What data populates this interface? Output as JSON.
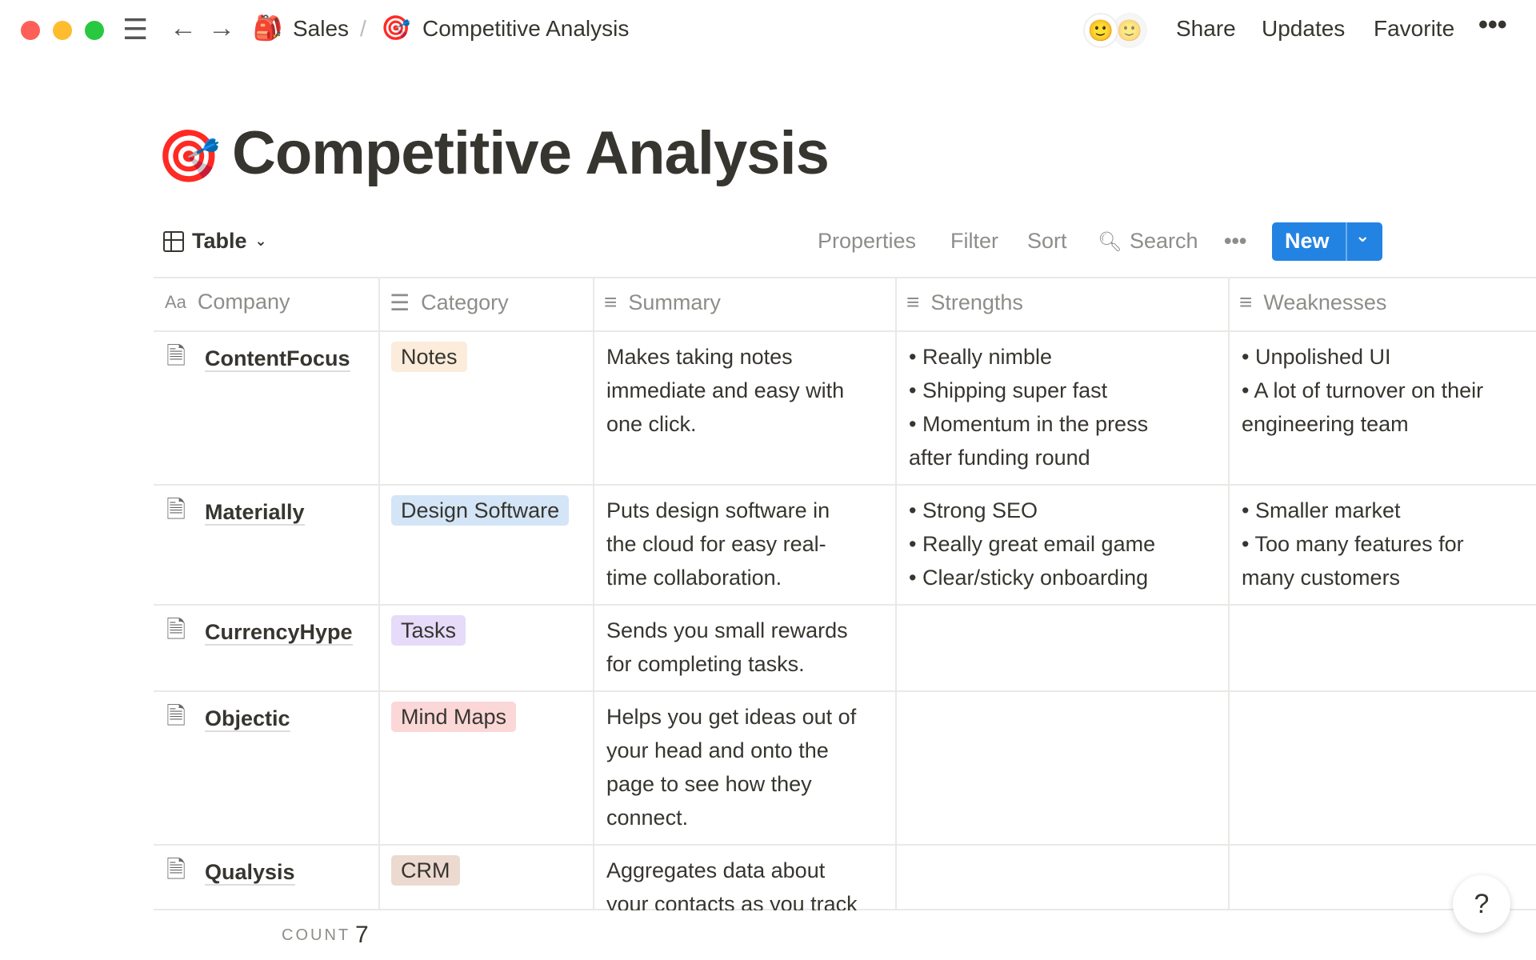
{
  "topbar": {
    "breadcrumb": [
      {
        "label": "Sales",
        "icon": "backpack-icon"
      },
      {
        "label": "Competitive Analysis",
        "icon": "target-icon"
      }
    ],
    "separator": "/",
    "actions": [
      "Share",
      "Updates",
      "Favorite"
    ]
  },
  "page": {
    "title": "Competitive Analysis",
    "icon": "target-icon"
  },
  "toolbar": {
    "view": "Table",
    "properties": "Properties",
    "filter": "Filter",
    "sort": "Sort",
    "search": "Search",
    "new": "New",
    "accent": "#2383e2"
  },
  "table": {
    "columns": [
      "Company",
      "Category",
      "Summary",
      "Strengths",
      "Weaknesses"
    ],
    "rows": [
      {
        "company": "ContentFocus",
        "category": "Notes",
        "color": "#fbecdb",
        "summary": [
          "Makes taking notes",
          "immediate and easy with",
          "one click."
        ],
        "strengths": [
          "• Really nimble",
          "• Shipping super fast",
          "• Momentum in the press",
          "after funding round"
        ],
        "weaknesses": [
          "• Unpolished UI",
          "• A lot of turnover on their",
          "engineering team"
        ]
      },
      {
        "company": "Materially",
        "category": "Design Software",
        "color": "#d3e5f7",
        "summary": [
          "Puts design software in",
          "the cloud for easy real-",
          "time collaboration."
        ],
        "strengths": [
          "• Strong SEO",
          "• Really great email game",
          "• Clear/sticky onboarding"
        ],
        "weaknesses": [
          "• Smaller market",
          "• Too many features for",
          "many customers"
        ]
      },
      {
        "company": "CurrencyHype",
        "category": "Tasks",
        "color": "#e6dbf8",
        "summary": [
          "Sends you small rewards",
          "for completing tasks."
        ],
        "strengths": [],
        "weaknesses": []
      },
      {
        "company": "Objectic",
        "category": "Mind Maps",
        "color": "#fbd7d7",
        "summary": [
          "Helps you get ideas out of",
          "your head and onto the",
          "page to see how they",
          "connect."
        ],
        "strengths": [],
        "weaknesses": []
      },
      {
        "company": "Qualysis",
        "category": "CRM",
        "color": "#ecd9d0",
        "summary": [
          "Aggregates data about",
          "your contacts as you track"
        ],
        "strengths": [],
        "weaknesses": []
      }
    ]
  },
  "footer": {
    "count_label": "COUNT",
    "count_value": "7"
  },
  "help": "?"
}
